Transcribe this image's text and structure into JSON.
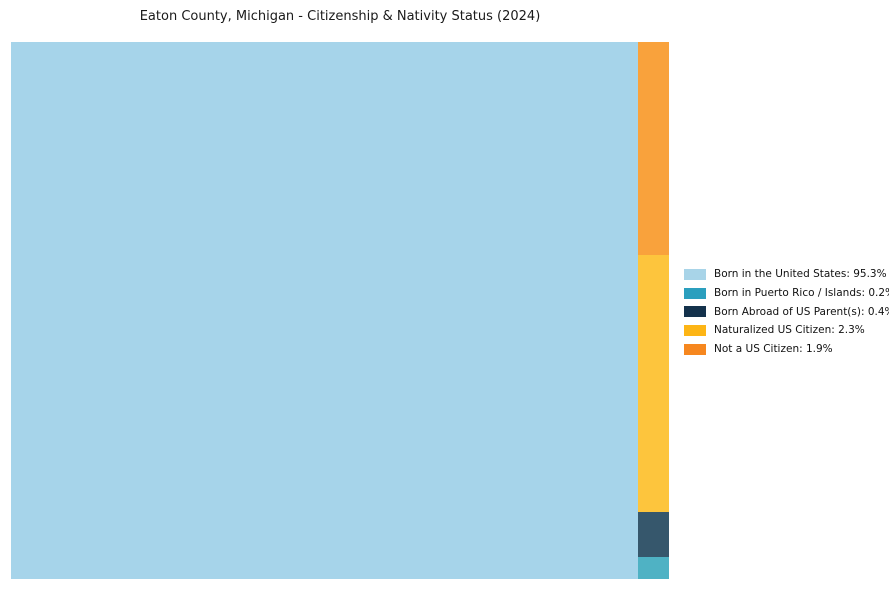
{
  "page": {
    "background": "#ffffff"
  },
  "chart_data": {
    "type": "treemap",
    "title": "Eaton County, Michigan - Citizenship & Nativity Status (2024)",
    "legend_position": "right",
    "values_unit": "percent",
    "segments": [
      {
        "id": "born-us",
        "label": "Born in the United States",
        "value": 95.3,
        "color": "#A6D4EA",
        "swatch_color": "#A8D4E8",
        "legend_label": "Born in the United States: 95.3%"
      },
      {
        "id": "puerto-rico",
        "label": "Born in Puerto Rico / Islands",
        "value": 0.2,
        "color": "#4FB2C4",
        "swatch_color": "#2B9FBE",
        "legend_label": "Born in Puerto Rico / Islands: 0.2%"
      },
      {
        "id": "born-abroad",
        "label": "Born Abroad of US Parent(s)",
        "value": 0.4,
        "color": "#36576C",
        "swatch_color": "#14324C",
        "legend_label": "Born Abroad of US Parent(s): 0.4%"
      },
      {
        "id": "naturalized",
        "label": "Naturalized US Citizen",
        "value": 2.3,
        "color": "#FDC53D",
        "swatch_color": "#FDB515",
        "legend_label": "Naturalized US Citizen: 2.3%"
      },
      {
        "id": "not-citizen",
        "label": "Not a US Citizen",
        "value": 1.9,
        "color": "#F9A23C",
        "swatch_color": "#F6871F",
        "legend_label": "Not a US Citizen: 1.9%"
      }
    ],
    "column_order": [
      "not-citizen",
      "naturalized",
      "born-abroad",
      "puerto-rico"
    ]
  }
}
